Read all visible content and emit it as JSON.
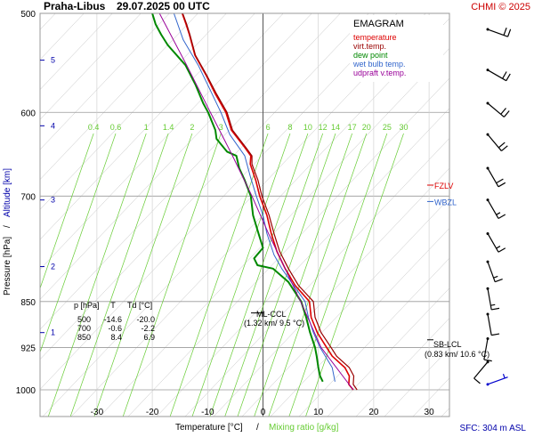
{
  "header": {
    "station": "Praha-Libus",
    "datetime": "29.07.2025 00 UTC",
    "copyright": "CHMI © 2025"
  },
  "legend": {
    "title": "EMAGRAM",
    "items": [
      {
        "label": "temperature",
        "color": "#dd0000"
      },
      {
        "label": "virt.temp.",
        "color": "#990000"
      },
      {
        "label": "dew point",
        "color": "#008800"
      },
      {
        "label": "wet bulb temp.",
        "color": "#3366cc"
      },
      {
        "label": "udpraft v.temp.",
        "color": "#990099"
      }
    ]
  },
  "axes": {
    "xlabel_main": "Temperature [°C]",
    "xlabel_sep": "/",
    "xlabel_mix": "Mixing ratio [g/kg]",
    "ylabel_pressure": "Pressure [hPa]",
    "ylabel_sep": "/",
    "ylabel_alt": "Altitude [km]",
    "surface_label": "SFC: 304 m ASL"
  },
  "table": {
    "headers": [
      "p [hPa]",
      "T",
      "Td [°C]"
    ],
    "rows": [
      [
        "500",
        "-14.6",
        "-20.0"
      ],
      [
        "700",
        "-0.6",
        "-2.2"
      ],
      [
        "850",
        "8.4",
        "6.9"
      ]
    ]
  },
  "annotations": {
    "ml_ccl": "ML-CCL",
    "ml_ccl_detail": "(1.32 km/ 9.5 °C)",
    "sb_lcl": "SB-LCL",
    "sb_lcl_detail": "(0.83 km/ 10.6 °C)",
    "fzlv": "FZLV",
    "wbzl": "WBZL"
  },
  "colors": {
    "temperature": "#dd0000",
    "virtual": "#990000",
    "dewpoint": "#008800",
    "wetbulb": "#3366cc",
    "updraft": "#990099",
    "mixing": "#66cc33",
    "altitude": "#0000aa",
    "copyright": "#cc0000",
    "grid": "#999999"
  },
  "chart_data": {
    "type": "line",
    "title": "EMAGRAM",
    "xlabel": "Temperature [°C] / Mixing ratio [g/kg]",
    "ylabel": "Pressure [hPa] / Altitude [km]",
    "xlim": [
      -40,
      34
    ],
    "ylim": [
      1000,
      500
    ],
    "y_scale": "log",
    "x_ticks": [
      -30,
      -20,
      -10,
      0,
      10,
      20,
      30
    ],
    "p_ticks": [
      500,
      600,
      700,
      850,
      925,
      1000
    ],
    "altitude_ticks": [
      {
        "km": "5",
        "p": 545
      },
      {
        "km": "4",
        "p": 615
      },
      {
        "km": "3",
        "p": 705
      },
      {
        "km": "2",
        "p": 797
      },
      {
        "km": "1",
        "p": 900
      }
    ],
    "mixing_ratio_lines": [
      {
        "label": "0.4",
        "t": -30.6
      },
      {
        "label": "0.6",
        "t": -26.6
      },
      {
        "label": "1",
        "t": -21.1
      },
      {
        "label": "1.4",
        "t": -17.1
      },
      {
        "label": "2",
        "t": -12.8
      },
      {
        "label": "3",
        "t": -7.6
      },
      {
        "label": "6",
        "t": 0.9
      },
      {
        "label": "8",
        "t": 4.9
      },
      {
        "label": "10",
        "t": 8.1
      },
      {
        "label": "12",
        "t": 10.8
      },
      {
        "label": "14",
        "t": 13.1
      },
      {
        "label": "17",
        "t": 16.1
      },
      {
        "label": "20",
        "t": 18.7
      },
      {
        "label": "25",
        "t": 22.4
      },
      {
        "label": "30",
        "t": 25.4
      }
    ],
    "series": [
      {
        "name": "temperature",
        "points": [
          [
            1000,
            16.3
          ],
          [
            990,
            15.5
          ],
          [
            975,
            15.6
          ],
          [
            960,
            14.8
          ],
          [
            940,
            12.5
          ],
          [
            925,
            11.5
          ],
          [
            900,
            9.8
          ],
          [
            875,
            8.7
          ],
          [
            850,
            8.4
          ],
          [
            825,
            5.8
          ],
          [
            800,
            4.0
          ],
          [
            775,
            2.5
          ],
          [
            750,
            1.5
          ],
          [
            725,
            0.7
          ],
          [
            700,
            -0.6
          ],
          [
            680,
            -1.3
          ],
          [
            660,
            -2.3
          ],
          [
            650,
            -2.2
          ],
          [
            640,
            -3.3
          ],
          [
            620,
            -5.7
          ],
          [
            600,
            -6.7
          ],
          [
            580,
            -8.6
          ],
          [
            560,
            -10.3
          ],
          [
            540,
            -12.3
          ],
          [
            520,
            -13.3
          ],
          [
            510,
            -13.9
          ],
          [
            500,
            -14.6
          ]
        ]
      },
      {
        "name": "virt.temp.",
        "points": [
          [
            1000,
            17.0
          ],
          [
            990,
            16.3
          ],
          [
            975,
            16.4
          ],
          [
            960,
            15.6
          ],
          [
            940,
            13.3
          ],
          [
            925,
            12.3
          ],
          [
            900,
            10.5
          ],
          [
            875,
            9.4
          ],
          [
            850,
            9.1
          ],
          [
            825,
            6.4
          ],
          [
            800,
            4.6
          ],
          [
            775,
            3.0
          ],
          [
            750,
            2.0
          ],
          [
            725,
            1.1
          ],
          [
            700,
            -0.2
          ],
          [
            680,
            -0.9
          ],
          [
            660,
            -2.0
          ],
          [
            650,
            -2.0
          ],
          [
            640,
            -3.1
          ],
          [
            620,
            -5.5
          ],
          [
            600,
            -6.5
          ],
          [
            580,
            -8.4
          ],
          [
            560,
            -10.2
          ],
          [
            540,
            -12.2
          ],
          [
            520,
            -13.2
          ],
          [
            510,
            -13.8
          ],
          [
            500,
            -14.5
          ]
        ]
      },
      {
        "name": "dew point",
        "points": [
          [
            985,
            10.8
          ],
          [
            975,
            10.3
          ],
          [
            960,
            10.0
          ],
          [
            940,
            9.7
          ],
          [
            925,
            9.4
          ],
          [
            900,
            8.5
          ],
          [
            875,
            7.8
          ],
          [
            850,
            6.9
          ],
          [
            820,
            4.6
          ],
          [
            800,
            1.8
          ],
          [
            795,
            -1.0
          ],
          [
            785,
            -1.6
          ],
          [
            770,
            0.0
          ],
          [
            750,
            -0.8
          ],
          [
            725,
            -1.8
          ],
          [
            700,
            -2.2
          ],
          [
            680,
            -3.3
          ],
          [
            665,
            -4.3
          ],
          [
            650,
            -4.8
          ],
          [
            645,
            -6.5
          ],
          [
            630,
            -8.4
          ],
          [
            620,
            -8.6
          ],
          [
            600,
            -9.9
          ],
          [
            590,
            -10.8
          ],
          [
            570,
            -12.2
          ],
          [
            550,
            -14.0
          ],
          [
            530,
            -17.2
          ],
          [
            520,
            -18.4
          ],
          [
            510,
            -19.4
          ],
          [
            500,
            -20.0
          ]
        ]
      },
      {
        "name": "wet bulb temp.",
        "points": [
          [
            985,
            13.0
          ],
          [
            960,
            12.5
          ],
          [
            925,
            10.3
          ],
          [
            900,
            9.1
          ],
          [
            875,
            8.2
          ],
          [
            850,
            7.6
          ],
          [
            800,
            3.4
          ],
          [
            780,
            2.0
          ],
          [
            750,
            0.7
          ],
          [
            725,
            0.0
          ],
          [
            700,
            -1.2
          ],
          [
            675,
            -2.3
          ],
          [
            650,
            -3.3
          ],
          [
            625,
            -6.0
          ],
          [
            600,
            -7.6
          ],
          [
            575,
            -9.6
          ],
          [
            550,
            -11.7
          ],
          [
            525,
            -14.4
          ],
          [
            500,
            -16.1
          ]
        ]
      },
      {
        "name": "udpraft v.temp.",
        "points": [
          [
            1000,
            16.3
          ],
          [
            925,
            10.5
          ],
          [
            900,
            9.3
          ],
          [
            850,
            6.8
          ],
          [
            800,
            4.0
          ],
          [
            750,
            1.0
          ],
          [
            700,
            -2.0
          ],
          [
            650,
            -5.5
          ],
          [
            600,
            -9.5
          ],
          [
            550,
            -13.8
          ],
          [
            500,
            -18.7
          ]
        ]
      }
    ],
    "levels": [
      {
        "name": "FZLV",
        "p": 686
      },
      {
        "name": "WBZL",
        "p": 707
      }
    ],
    "wind_barbs": [
      {
        "p": 515,
        "dir": 290,
        "kt": 20
      },
      {
        "p": 555,
        "dir": 300,
        "kt": 20
      },
      {
        "p": 590,
        "dir": 310,
        "kt": 20
      },
      {
        "p": 625,
        "dir": 320,
        "kt": 20
      },
      {
        "p": 665,
        "dir": 330,
        "kt": 20
      },
      {
        "p": 705,
        "dir": 330,
        "kt": 15
      },
      {
        "p": 750,
        "dir": 330,
        "kt": 15
      },
      {
        "p": 790,
        "dir": 340,
        "kt": 15
      },
      {
        "p": 830,
        "dir": 350,
        "kt": 15
      },
      {
        "p": 870,
        "dir": 350,
        "kt": 10
      },
      {
        "p": 910,
        "dir": 10,
        "kt": 10
      },
      {
        "p": 950,
        "dir": 40,
        "kt": 10
      },
      {
        "p": 990,
        "dir": 250,
        "kt": 5
      }
    ]
  }
}
